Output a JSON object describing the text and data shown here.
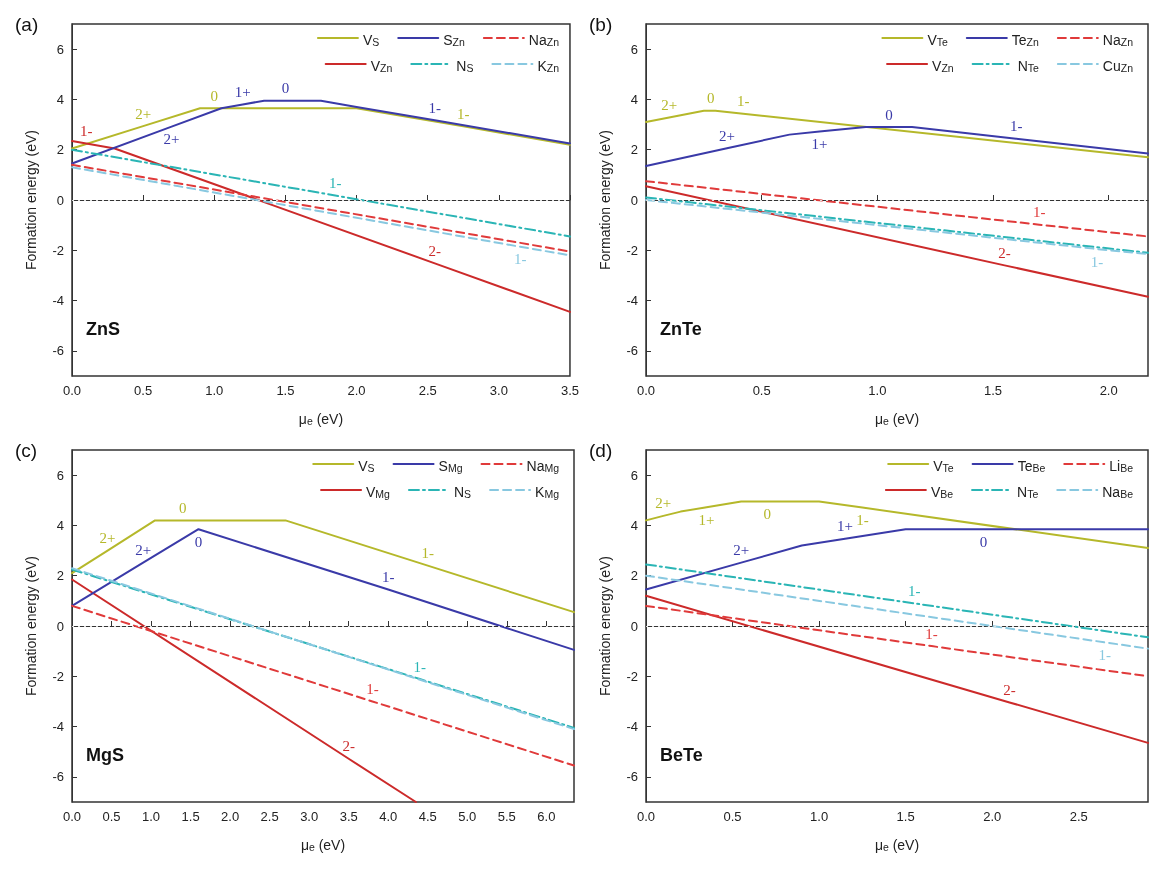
{
  "chart_data": [
    {
      "type": "line",
      "title": "(a)",
      "xlabel": "μ$_{e}$ (eV)",
      "ylabel": "Formation energy (eV)",
      "xlim": [
        0,
        3.5
      ],
      "xticks": [
        {
          "value": 0,
          "label": "0.0"
        },
        0.5,
        {
          "value": 1,
          "label": "1.0"
        },
        1.5,
        {
          "value": 2,
          "label": "2.0"
        },
        2.5,
        {
          "value": 3,
          "label": "3.0"
        },
        3.5
      ],
      "ylim": [
        -7,
        7
      ],
      "yticks": [
        -6,
        -4,
        -2,
        0,
        2,
        4,
        6
      ],
      "legend": "top right",
      "ref_lines": [
        {
          "axis": "y",
          "value": 0,
          "color": "#dddddd",
          "line_style": "dotted"
        }
      ],
      "annotations": [
        "ZnS",
        {
          "text": "2+",
          "x": 0.5,
          "y": 2.94
        },
        {
          "text": "0",
          "x": 1.0,
          "y": 3.65
        },
        {
          "text": "1-",
          "x": 2.75,
          "y": 2.93
        },
        {
          "text": "1-",
          "x": 0.1,
          "y": 2.25
        },
        {
          "text": "2-",
          "x": 2.55,
          "y": -2.52
        },
        {
          "text": "2+",
          "x": 0.7,
          "y": 2.92
        },
        {
          "text": "1+",
          "x": 1.2,
          "y": 3.8
        },
        {
          "text": "0",
          "x": 1.5,
          "y": 3.95
        },
        {
          "text": "1-",
          "x": 2.55,
          "y": 3.17
        },
        {
          "text": "1-",
          "x": 1.85,
          "y": 0.18
        },
        {
          "text": "1-",
          "x": 3.15,
          "y": -1.86
        }
      ],
      "series": [
        {
          "name": "V$_{S}$",
          "color": "#b5b82a",
          "line_style": "solid",
          "x": [
            0,
            0.5,
            0.9,
            1.0,
            2.0,
            2.75,
            3.5
          ],
          "values": [
            2.05,
            2.94,
            3.65,
            3.65,
            3.65,
            2.93,
            2.2
          ]
        },
        {
          "name": "V$_{Zn}$",
          "color": "#cc2a2a",
          "line_style": "solid",
          "x": [
            0,
            0.1,
            0.3,
            2.55,
            3.5
          ],
          "values": [
            2.35,
            2.25,
            2.05,
            -2.52,
            -4.45
          ]
        },
        {
          "name": "S$_{Zn}$",
          "color": "#3a3aa8",
          "line_style": "solid",
          "x": [
            0,
            0.7,
            1.05,
            1.2,
            1.35,
            1.5,
            1.75,
            2.0,
            2.55,
            3.5
          ],
          "values": [
            1.45,
            2.92,
            3.65,
            3.8,
            3.95,
            3.95,
            3.95,
            3.7,
            3.17,
            2.25
          ]
        },
        {
          "name": "N$_{S}$",
          "color": "#2ab5b5",
          "line_style": "dashdot",
          "x": [
            0,
            1.85,
            3.5
          ],
          "values": [
            2.0,
            0.18,
            -1.45
          ]
        },
        {
          "name": "Na$_{Zn}$",
          "color": "#e03a3a",
          "line_style": "dashed",
          "x": [
            0,
            3.5
          ],
          "values": [
            1.4,
            -2.05
          ]
        },
        {
          "name": "K$_{Zn}$",
          "color": "#88c8e0",
          "line_style": "dashed",
          "x": [
            0,
            3.15,
            3.5
          ],
          "values": [
            1.3,
            -1.86,
            -2.2
          ]
        }
      ]
    },
    {
      "type": "line",
      "title": "(b)",
      "xlabel": "μ$_{e}$ (eV)",
      "ylabel": "Formation energy (eV)",
      "xlim": [
        0,
        2.17
      ],
      "xticks": [
        {
          "value": 0,
          "label": "0.0"
        },
        0.5,
        {
          "value": 1,
          "label": "1.0"
        },
        1.5,
        {
          "value": 2,
          "label": "2.0"
        }
      ],
      "ylim": [
        -7,
        7
      ],
      "yticks": [
        -6,
        -4,
        -2,
        0,
        2,
        4,
        6
      ],
      "legend": "top right",
      "ref_lines": [
        {
          "axis": "y",
          "value": 0,
          "color": "#dddddd",
          "line_style": "dotted"
        }
      ],
      "annotations": [
        "ZnTe",
        {
          "text": "2+",
          "x": 0.1,
          "y": 3.28
        },
        {
          "text": "0",
          "x": 0.28,
          "y": 3.55
        },
        {
          "text": "1-",
          "x": 0.42,
          "y": 3.43
        },
        {
          "text": "2-",
          "x": 1.55,
          "y": -2.6
        },
        {
          "text": "2+",
          "x": 0.35,
          "y": 2.06
        },
        {
          "text": "1+",
          "x": 0.75,
          "y": 2.72
        },
        {
          "text": "0",
          "x": 1.05,
          "y": 2.9
        },
        {
          "text": "1-",
          "x": 1.6,
          "y": 2.44
        },
        {
          "text": "1-",
          "x": 1.7,
          "y": -0.98
        },
        {
          "text": "1-",
          "x": 1.95,
          "y": -1.95
        }
      ],
      "series": [
        {
          "name": "V$_{Te}$",
          "color": "#b5b82a",
          "line_style": "solid",
          "x": [
            0,
            0.1,
            0.25,
            0.28,
            0.3,
            0.42,
            2.17
          ],
          "values": [
            3.1,
            3.28,
            3.55,
            3.55,
            3.55,
            3.43,
            1.7
          ]
        },
        {
          "name": "V$_{Zn}$",
          "color": "#cc2a2a",
          "line_style": "solid",
          "x": [
            0,
            1.55,
            2.17
          ],
          "values": [
            0.55,
            -2.6,
            -3.85
          ]
        },
        {
          "name": "Te$_{Zn}$",
          "color": "#3a3aa8",
          "line_style": "solid",
          "x": [
            0,
            0.35,
            0.62,
            0.75,
            0.95,
            1.05,
            1.15,
            1.6,
            2.17
          ],
          "values": [
            1.35,
            2.06,
            2.6,
            2.72,
            2.9,
            2.9,
            2.9,
            2.44,
            1.85
          ]
        },
        {
          "name": "N$_{Te}$",
          "color": "#2ab5b5",
          "line_style": "dashdot",
          "x": [
            0,
            2.17
          ],
          "values": [
            0.1,
            -2.1
          ]
        },
        {
          "name": "Na$_{Zn}$",
          "color": "#e03a3a",
          "line_style": "dashed",
          "x": [
            0,
            1.7,
            2.17
          ],
          "values": [
            0.75,
            -0.98,
            -1.45
          ]
        },
        {
          "name": "Cu$_{Zn}$",
          "color": "#88c8e0",
          "line_style": "dashed",
          "x": [
            0,
            1.95,
            2.17
          ],
          "values": [
            0.0,
            -1.95,
            -2.15
          ]
        }
      ]
    },
    {
      "type": "line",
      "title": "(c)",
      "xlabel": "μ$_{e}$ (eV)",
      "ylabel": "Formation energy (eV)",
      "xlim": [
        0,
        6.35
      ],
      "xticks": [
        {
          "value": 0,
          "label": "0.0"
        },
        0.5,
        {
          "value": 1,
          "label": "1.0"
        },
        1.5,
        {
          "value": 2,
          "label": "2.0"
        },
        2.5,
        {
          "value": 3,
          "label": "3.0"
        },
        3.5,
        {
          "value": 4,
          "label": "4.0"
        },
        4.5,
        {
          "value": 5,
          "label": "5.0"
        },
        5.5,
        {
          "value": 6,
          "label": "6.0"
        }
      ],
      "ylim": [
        -7,
        7
      ],
      "yticks": [
        -6,
        -4,
        -2,
        0,
        2,
        4,
        6
      ],
      "legend": "top right",
      "ref_lines": [
        {
          "axis": "y",
          "value": 0,
          "color": "#dddddd",
          "line_style": "dotted"
        }
      ],
      "annotations": [
        "MgS",
        {
          "text": "2+",
          "x": 0.45,
          "y": 3.0
        },
        {
          "text": "0",
          "x": 1.4,
          "y": 4.2
        },
        {
          "text": "1-",
          "x": 4.5,
          "y": 2.4
        },
        {
          "text": "2-",
          "x": 3.5,
          "y": -5.28
        },
        {
          "text": "2+",
          "x": 0.9,
          "y": 2.52
        },
        {
          "text": "0",
          "x": 1.6,
          "y": 3.85
        },
        {
          "text": "1-",
          "x": 4.0,
          "y": 1.45
        },
        {
          "text": "1-",
          "x": 4.4,
          "y": -2.11
        },
        {
          "text": "1-",
          "x": 3.8,
          "y": -3.0
        }
      ],
      "series": [
        {
          "name": "V$_{S}$",
          "color": "#b5b82a",
          "line_style": "solid",
          "x": [
            0,
            0.45,
            1.05,
            1.4,
            2.7,
            4.5,
            6.35
          ],
          "values": [
            2.1,
            3.0,
            4.2,
            4.2,
            4.2,
            2.4,
            0.55
          ]
        },
        {
          "name": "V$_{Mg}$",
          "color": "#cc2a2a",
          "line_style": "solid",
          "x": [
            0,
            3.5,
            4.35
          ],
          "values": [
            1.85,
            -5.28,
            -7
          ]
        },
        {
          "name": "S$_{Mg}$",
          "color": "#3a3aa8",
          "line_style": "solid",
          "x": [
            0,
            0.9,
            1.6,
            4.0,
            6.35
          ],
          "values": [
            0.8,
            2.52,
            3.85,
            1.45,
            -0.95
          ]
        },
        {
          "name": "N$_{S}$",
          "color": "#2ab5b5",
          "line_style": "dashdot",
          "x": [
            0,
            4.4,
            6.35
          ],
          "values": [
            2.25,
            -2.11,
            -4.05
          ]
        },
        {
          "name": "Na$_{Mg}$",
          "color": "#e03a3a",
          "line_style": "dashed",
          "x": [
            0,
            3.8,
            6.35
          ],
          "values": [
            0.8,
            -3.0,
            -5.55
          ]
        },
        {
          "name": "K$_{Mg}$",
          "color": "#88c8e0",
          "line_style": "dashed",
          "x": [
            0,
            6.35
          ],
          "values": [
            2.3,
            -4.1
          ]
        }
      ]
    },
    {
      "type": "line",
      "title": "(d)",
      "xlabel": "μ$_{e}$ (eV)",
      "ylabel": "Formation energy (eV)",
      "xlim": [
        0,
        2.9
      ],
      "xticks": [
        {
          "value": 0,
          "label": "0.0"
        },
        0.5,
        {
          "value": 1,
          "label": "1.0"
        },
        1.5,
        {
          "value": 2,
          "label": "2.0"
        },
        2.5
      ],
      "ylim": [
        -7,
        7
      ],
      "yticks": [
        -6,
        -4,
        -2,
        0,
        2,
        4,
        6
      ],
      "legend": "top right",
      "ref_lines": [
        {
          "axis": "y",
          "value": 0,
          "color": "#dddddd",
          "line_style": "dotted"
        }
      ],
      "annotations": [
        "BeTe",
        {
          "text": "2+",
          "x": 0.1,
          "y": 4.38
        },
        {
          "text": "1+",
          "x": 0.35,
          "y": 4.72
        },
        {
          "text": "0",
          "x": 0.7,
          "y": 4.95
        },
        {
          "text": "1-",
          "x": 1.25,
          "y": 4.71
        },
        {
          "text": "2-",
          "x": 2.1,
          "y": -3.04
        },
        {
          "text": "2+",
          "x": 0.55,
          "y": 2.52
        },
        {
          "text": "1+",
          "x": 1.15,
          "y": 3.47
        },
        {
          "text": "0",
          "x": 1.95,
          "y": 3.85
        },
        {
          "text": "1-",
          "x": 1.55,
          "y": 0.9
        },
        {
          "text": "1-",
          "x": 1.65,
          "y": -0.8
        },
        {
          "text": "1-",
          "x": 2.65,
          "y": -0.65
        }
      ],
      "series": [
        {
          "name": "V$_{Te}$",
          "color": "#b5b82a",
          "line_style": "solid",
          "x": [
            0,
            0.1,
            0.2,
            0.35,
            0.55,
            0.7,
            1.0,
            1.25,
            2.9
          ],
          "values": [
            4.2,
            4.38,
            4.55,
            4.72,
            4.95,
            4.95,
            4.95,
            4.71,
            3.1
          ]
        },
        {
          "name": "V$_{Be}$",
          "color": "#cc2a2a",
          "line_style": "solid",
          "x": [
            0,
            2.1,
            2.9
          ],
          "values": [
            1.2,
            -3.04,
            -4.65
          ]
        },
        {
          "name": "Te$_{Be}$",
          "color": "#3a3aa8",
          "line_style": "solid",
          "x": [
            0,
            0.55,
            0.9,
            1.15,
            1.5,
            1.95,
            2.9
          ],
          "values": [
            1.45,
            2.52,
            3.2,
            3.47,
            3.85,
            3.85,
            3.85
          ]
        },
        {
          "name": "N$_{Te}$",
          "color": "#2ab5b5",
          "line_style": "dashdot",
          "x": [
            0,
            1.55,
            2.9
          ],
          "values": [
            2.45,
            0.9,
            -0.45
          ]
        },
        {
          "name": "Li$_{Be}$",
          "color": "#e03a3a",
          "line_style": "dashed",
          "x": [
            0,
            1.65,
            2.9
          ],
          "values": [
            0.8,
            -0.8,
            -2.0
          ]
        },
        {
          "name": "Na$_{Be}$",
          "color": "#88c8e0",
          "line_style": "dashed",
          "x": [
            0,
            2.65,
            2.9
          ],
          "values": [
            2.0,
            -0.65,
            -0.9
          ]
        }
      ]
    }
  ]
}
